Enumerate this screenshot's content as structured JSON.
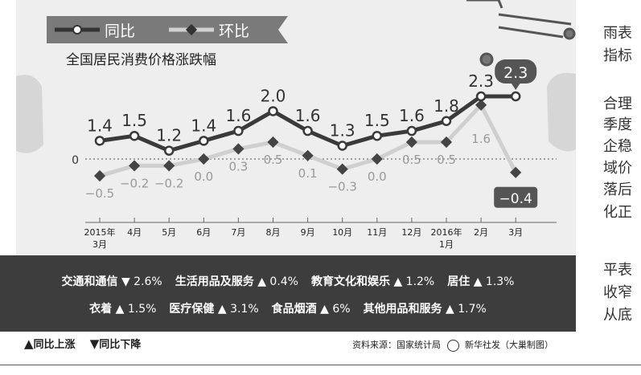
{
  "legend": {
    "yoy": "同比",
    "mom": "环比"
  },
  "chart_title": "全国居民消费价格涨跌幅",
  "chart_data": {
    "type": "line",
    "title": "全国居民消费价格涨跌幅",
    "categories": [
      {
        "line1": "2015年",
        "line2": "3月"
      },
      {
        "line1": "4月",
        "line2": ""
      },
      {
        "line1": "5月",
        "line2": ""
      },
      {
        "line1": "6月",
        "line2": ""
      },
      {
        "line1": "7月",
        "line2": ""
      },
      {
        "line1": "8月",
        "line2": ""
      },
      {
        "line1": "9月",
        "line2": ""
      },
      {
        "line1": "10月",
        "line2": ""
      },
      {
        "line1": "11月",
        "line2": ""
      },
      {
        "line1": "12月",
        "line2": ""
      },
      {
        "line1": "2016年",
        "line2": "1月"
      },
      {
        "line1": "2月",
        "line2": ""
      },
      {
        "line1": "3月",
        "line2": ""
      }
    ],
    "series": [
      {
        "name": "同比",
        "values": [
          1.4,
          1.5,
          1.2,
          1.4,
          1.6,
          2.0,
          1.6,
          1.3,
          1.5,
          1.6,
          1.8,
          2.3,
          2.3
        ],
        "labels": [
          "1.4",
          "1.5",
          "1.2",
          "1.4",
          "1.6",
          "2.0",
          "1.6",
          "1.3",
          "1.5",
          "1.6",
          "1.8",
          "2.3",
          "2.3"
        ]
      },
      {
        "name": "环比",
        "values": [
          -0.5,
          -0.2,
          -0.2,
          0.0,
          0.3,
          0.5,
          0.1,
          -0.3,
          0.0,
          0.5,
          0.5,
          1.6,
          -0.4
        ],
        "labels": [
          "−0.5",
          "−0.2",
          "−0.2",
          "0.0",
          "0.3",
          "0.5",
          "0.1",
          "−0.3",
          "0.0",
          "0.5",
          "0.5",
          "1.6",
          "−0.4"
        ]
      }
    ],
    "zero_label": "0"
  },
  "categories_box": {
    "row1": [
      {
        "name": "交通和通信",
        "dir": "down",
        "value": "2.6%"
      },
      {
        "name": "生活用品及服务",
        "dir": "up",
        "value": "0.4%"
      },
      {
        "name": "教育文化和娱乐",
        "dir": "up",
        "value": "1.2%"
      },
      {
        "name": "居住",
        "dir": "up",
        "value": "1.3%"
      }
    ],
    "row2": [
      {
        "name": "衣着",
        "dir": "up",
        "value": "1.5%"
      },
      {
        "name": "医疗保健",
        "dir": "up",
        "value": "3.1%"
      },
      {
        "name": "食品烟酒",
        "dir": "up",
        "value": "6%"
      },
      {
        "name": "其他用品和服务",
        "dir": "up",
        "value": "1.7%"
      }
    ]
  },
  "footer": {
    "up_legend": "同比上涨",
    "down_legend": "同比下降",
    "source": "资料来源：国家统计局",
    "credit": "新华社发（大巢制图）"
  },
  "side_text": [
    {
      "text": "雨表"
    },
    {
      "text": "指标"
    },
    {
      "text": "合理"
    },
    {
      "text": "季度"
    },
    {
      "text": "企稳"
    },
    {
      "text": "域价"
    },
    {
      "text": "落后"
    },
    {
      "text": "化正"
    },
    {
      "text": "平表"
    },
    {
      "text": "收窄"
    },
    {
      "text": "从底"
    }
  ]
}
